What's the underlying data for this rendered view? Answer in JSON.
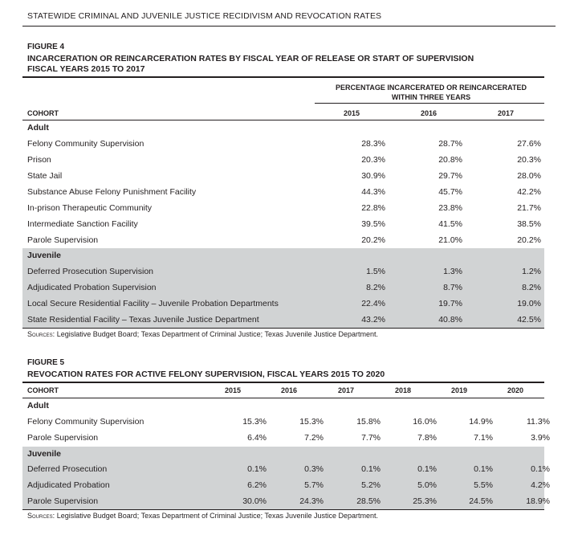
{
  "page_header": "STATEWIDE CRIMINAL AND JUVENILE JUSTICE RECIDIVISM AND REVOCATION RATES",
  "figure4": {
    "label": "FIGURE 4",
    "title_line1": "INCARCERATION OR REINCARCERATION RATES BY FISCAL YEAR OF RELEASE OR START OF SUPERVISION",
    "title_line2": "FISCAL YEARS 2015 TO 2017",
    "pct_header_line1": "PERCENTAGE INCARCERATED OR REINCARCERATED",
    "pct_header_line2": "WITHIN THREE YEARS",
    "cohort_label": "COHORT",
    "years": [
      "2015",
      "2016",
      "2017"
    ],
    "adult_label": "Adult",
    "adult_rows": [
      {
        "name": "Felony Community Supervision",
        "values": [
          "28.3%",
          "28.7%",
          "27.6%"
        ]
      },
      {
        "name": "Prison",
        "values": [
          "20.3%",
          "20.8%",
          "20.3%"
        ]
      },
      {
        "name": "State Jail",
        "values": [
          "30.9%",
          "29.7%",
          "28.0%"
        ]
      },
      {
        "name": "Substance Abuse Felony Punishment Facility",
        "values": [
          "44.3%",
          "45.7%",
          "42.2%"
        ]
      },
      {
        "name": "In-prison Therapeutic Community",
        "values": [
          "22.8%",
          "23.8%",
          "21.7%"
        ]
      },
      {
        "name": "Intermediate Sanction Facility",
        "values": [
          "39.5%",
          "41.5%",
          "38.5%"
        ]
      },
      {
        "name": "Parole Supervision",
        "values": [
          "20.2%",
          "21.0%",
          "20.2%"
        ]
      }
    ],
    "juvenile_label": "Juvenile",
    "juvenile_rows": [
      {
        "name": "Deferred Prosecution Supervision",
        "values": [
          "1.5%",
          "1.3%",
          "1.2%"
        ]
      },
      {
        "name": "Adjudicated Probation Supervision",
        "values": [
          "8.2%",
          "8.7%",
          "8.2%"
        ]
      },
      {
        "name": "Local Secure Residential Facility – Juvenile Probation Departments",
        "values": [
          "22.4%",
          "19.7%",
          "19.0%"
        ]
      },
      {
        "name": "State Residential Facility – Texas Juvenile Justice Department",
        "values": [
          "43.2%",
          "40.8%",
          "42.5%"
        ]
      }
    ],
    "sources_label": "Sources:",
    "sources_text": " Legislative Budget Board; Texas Department of Criminal Justice; Texas Juvenile Justice Department."
  },
  "figure5": {
    "label": "FIGURE 5",
    "title": "REVOCATION RATES FOR ACTIVE FELONY SUPERVISION, FISCAL YEARS 2015 TO 2020",
    "cohort_label": "COHORT",
    "years": [
      "2015",
      "2016",
      "2017",
      "2018",
      "2019",
      "2020"
    ],
    "adult_label": "Adult",
    "adult_rows": [
      {
        "name": "Felony Community Supervision",
        "values": [
          "15.3%",
          "15.3%",
          "15.8%",
          "16.0%",
          "14.9%",
          "11.3%"
        ]
      },
      {
        "name": "Parole Supervision",
        "values": [
          "6.4%",
          "7.2%",
          "7.7%",
          "7.8%",
          "7.1%",
          "3.9%"
        ]
      }
    ],
    "juvenile_label": "Juvenile",
    "juvenile_rows": [
      {
        "name": "Deferred Prosecution",
        "values": [
          "0.1%",
          "0.3%",
          "0.1%",
          "0.1%",
          "0.1%",
          "0.1%"
        ]
      },
      {
        "name": "Adjudicated Probation",
        "values": [
          "6.2%",
          "5.7%",
          "5.2%",
          "5.0%",
          "5.5%",
          "4.2%"
        ]
      },
      {
        "name": "Parole Supervision",
        "values": [
          "30.0%",
          "24.3%",
          "28.5%",
          "25.3%",
          "24.5%",
          "18.9%"
        ]
      }
    ],
    "sources_label": "Sources:",
    "sources_text": " Legislative Budget Board; Texas Department of Criminal Justice; Texas Juvenile Justice Department."
  }
}
